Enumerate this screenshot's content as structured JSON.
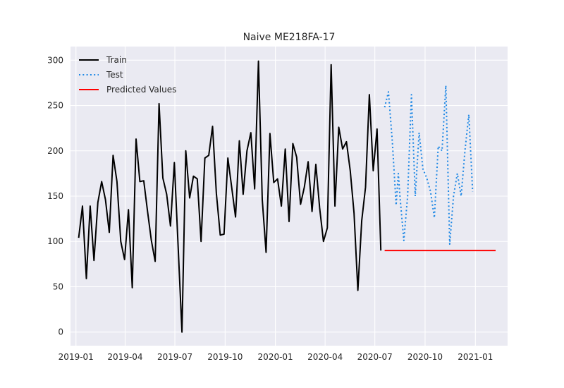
{
  "chart_data": {
    "type": "line",
    "title": "Naive ME218FA-17",
    "xlabel": "",
    "ylabel": "",
    "xlim": [
      "2018-12-22",
      "2021-03-01"
    ],
    "ylim": [
      -15,
      315
    ],
    "x_ticks": [
      "2019-01",
      "2019-04",
      "2019-07",
      "2019-10",
      "2020-01",
      "2020-04",
      "2020-07",
      "2020-10",
      "2021-01"
    ],
    "y_ticks": [
      0,
      50,
      100,
      150,
      200,
      250,
      300
    ],
    "grid": true,
    "legend_position": "top-left",
    "series": [
      {
        "name": "Train",
        "color": "#000000",
        "style": "solid",
        "points": [
          [
            "2019-01-06",
            104
          ],
          [
            "2019-01-13",
            139
          ],
          [
            "2019-01-20",
            59
          ],
          [
            "2019-01-27",
            139
          ],
          [
            "2019-02-03",
            79
          ],
          [
            "2019-02-10",
            143
          ],
          [
            "2019-02-17",
            166
          ],
          [
            "2019-02-24",
            146
          ],
          [
            "2019-03-03",
            110
          ],
          [
            "2019-03-10",
            195
          ],
          [
            "2019-03-17",
            166
          ],
          [
            "2019-03-24",
            100
          ],
          [
            "2019-03-31",
            80
          ],
          [
            "2019-04-07",
            135
          ],
          [
            "2019-04-14",
            49
          ],
          [
            "2019-04-21",
            213
          ],
          [
            "2019-04-28",
            166
          ],
          [
            "2019-05-05",
            167
          ],
          [
            "2019-05-12",
            133
          ],
          [
            "2019-05-19",
            101
          ],
          [
            "2019-05-26",
            78
          ],
          [
            "2019-06-02",
            252
          ],
          [
            "2019-06-09",
            170
          ],
          [
            "2019-06-16",
            152
          ],
          [
            "2019-06-23",
            117
          ],
          [
            "2019-06-30",
            187
          ],
          [
            "2019-07-07",
            94
          ],
          [
            "2019-07-14",
            0
          ],
          [
            "2019-07-21",
            200
          ],
          [
            "2019-07-28",
            148
          ],
          [
            "2019-08-04",
            172
          ],
          [
            "2019-08-11",
            169
          ],
          [
            "2019-08-18",
            100
          ],
          [
            "2019-08-25",
            192
          ],
          [
            "2019-09-01",
            195
          ],
          [
            "2019-09-08",
            227
          ],
          [
            "2019-09-15",
            153
          ],
          [
            "2019-09-22",
            107
          ],
          [
            "2019-09-29",
            108
          ],
          [
            "2019-10-06",
            192
          ],
          [
            "2019-10-13",
            160
          ],
          [
            "2019-10-20",
            127
          ],
          [
            "2019-10-27",
            211
          ],
          [
            "2019-11-03",
            152
          ],
          [
            "2019-11-10",
            200
          ],
          [
            "2019-11-17",
            220
          ],
          [
            "2019-11-24",
            158
          ],
          [
            "2019-12-01",
            299
          ],
          [
            "2019-12-08",
            146
          ],
          [
            "2019-12-15",
            88
          ],
          [
            "2019-12-22",
            219
          ],
          [
            "2019-12-29",
            165
          ],
          [
            "2020-01-05",
            169
          ],
          [
            "2020-01-12",
            139
          ],
          [
            "2020-01-19",
            202
          ],
          [
            "2020-01-26",
            122
          ],
          [
            "2020-02-02",
            208
          ],
          [
            "2020-02-09",
            193
          ],
          [
            "2020-02-16",
            141
          ],
          [
            "2020-02-23",
            160
          ],
          [
            "2020-03-01",
            188
          ],
          [
            "2020-03-08",
            133
          ],
          [
            "2020-03-15",
            185
          ],
          [
            "2020-03-22",
            137
          ],
          [
            "2020-03-29",
            100
          ],
          [
            "2020-04-05",
            115
          ],
          [
            "2020-04-12",
            295
          ],
          [
            "2020-04-19",
            139
          ],
          [
            "2020-04-26",
            226
          ],
          [
            "2020-05-03",
            202
          ],
          [
            "2020-05-10",
            210
          ],
          [
            "2020-05-17",
            178
          ],
          [
            "2020-05-24",
            131
          ],
          [
            "2020-05-31",
            46
          ],
          [
            "2020-06-07",
            123
          ],
          [
            "2020-06-14",
            160
          ],
          [
            "2020-06-21",
            262
          ],
          [
            "2020-06-28",
            178
          ],
          [
            "2020-07-05",
            224
          ],
          [
            "2020-07-12",
            90
          ]
        ]
      },
      {
        "name": "Test",
        "color": "#1e88e5",
        "style": "dotted",
        "points": [
          [
            "2020-07-19",
            248
          ],
          [
            "2020-07-26",
            265
          ],
          [
            "2020-08-02",
            210
          ],
          [
            "2020-08-09",
            140
          ],
          [
            "2020-08-13",
            175
          ],
          [
            "2020-08-16",
            150
          ],
          [
            "2020-08-23",
            101
          ],
          [
            "2020-08-30",
            150
          ],
          [
            "2020-09-06",
            262
          ],
          [
            "2020-09-13",
            150
          ],
          [
            "2020-09-20",
            220
          ],
          [
            "2020-09-27",
            180
          ],
          [
            "2020-10-04",
            170
          ],
          [
            "2020-10-11",
            155
          ],
          [
            "2020-10-18",
            126
          ],
          [
            "2020-10-25",
            205
          ],
          [
            "2020-11-01",
            200
          ],
          [
            "2020-11-08",
            272
          ],
          [
            "2020-11-15",
            97
          ],
          [
            "2020-11-22",
            150
          ],
          [
            "2020-11-29",
            175
          ],
          [
            "2020-12-06",
            150
          ],
          [
            "2020-12-13",
            200
          ],
          [
            "2020-12-20",
            240
          ],
          [
            "2020-12-27",
            155
          ]
        ]
      },
      {
        "name": "Predicted Values",
        "color": "#ff0000",
        "style": "solid",
        "points": [
          [
            "2020-07-19",
            90
          ],
          [
            "2021-02-07",
            90
          ]
        ]
      }
    ]
  }
}
